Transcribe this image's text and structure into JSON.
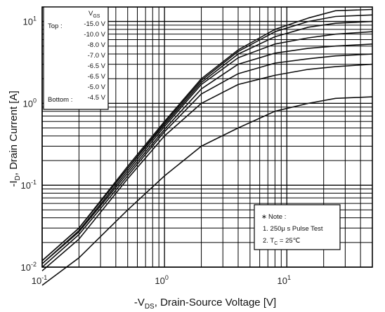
{
  "chart_data": {
    "type": "line",
    "x_scale": "log",
    "y_scale": "log",
    "xlim": [
      0.1,
      50
    ],
    "ylim": [
      0.01,
      15
    ],
    "grid": true,
    "xlabel": {
      "prefix": "-V",
      "sub": "DS",
      "suffix": ", Drain-Source Voltage [V]"
    },
    "ylabel": {
      "prefix": "-I",
      "sub": "D",
      "suffix": ", Drain Current [A]"
    },
    "x_ticks": [
      {
        "value": 0.1,
        "base": "10",
        "exp": "-1"
      },
      {
        "value": 1,
        "base": "10",
        "exp": "0"
      },
      {
        "value": 10,
        "base": "10",
        "exp": "1"
      }
    ],
    "y_ticks": [
      {
        "value": 0.01,
        "base": "10",
        "exp": "-2"
      },
      {
        "value": 0.1,
        "base": "10",
        "exp": "-1"
      },
      {
        "value": 1,
        "base": "10",
        "exp": "0"
      },
      {
        "value": 10,
        "base": "10",
        "exp": "1"
      }
    ],
    "legend": {
      "header_prefix": "V",
      "header_sub": "GS",
      "top_label": "Top :",
      "bottom_label": "Bottom :",
      "entries": [
        "-15.0 V",
        "-10.0 V",
        "-8.0 V",
        "-7.0 V",
        "-6.5 V",
        "-6.5 V",
        "-5.0 V",
        "-4.5 V"
      ]
    },
    "note": {
      "title": "Note :",
      "line1": "1. 250μ s Pulse Test",
      "line2_prefix": "2. T",
      "line2_sub": "C",
      "line2_suffix": " = 25℃"
    },
    "series": [
      {
        "name": "-15.0 V",
        "x": [
          0.1,
          0.2,
          0.5,
          1,
          2,
          4,
          8,
          15,
          25,
          50
        ],
        "y": [
          0.012,
          0.03,
          0.17,
          0.6,
          2.0,
          4.5,
          8.0,
          11.0,
          13.5,
          14.0
        ]
      },
      {
        "name": "-10.0 V",
        "x": [
          0.1,
          0.2,
          0.5,
          1,
          2,
          4,
          8,
          15,
          25,
          50
        ],
        "y": [
          0.012,
          0.03,
          0.16,
          0.58,
          1.9,
          4.3,
          7.5,
          10.0,
          11.5,
          12.0
        ]
      },
      {
        "name": "-8.0 V",
        "x": [
          0.1,
          0.2,
          0.5,
          1,
          2,
          4,
          8,
          15,
          25,
          50
        ],
        "y": [
          0.012,
          0.03,
          0.16,
          0.55,
          1.8,
          4.0,
          6.5,
          8.5,
          9.5,
          10.0
        ]
      },
      {
        "name": "-7.0 V",
        "x": [
          0.1,
          0.2,
          0.5,
          1,
          2,
          4,
          8,
          15,
          25,
          50
        ],
        "y": [
          0.011,
          0.028,
          0.15,
          0.52,
          1.7,
          3.6,
          5.3,
          6.3,
          7.0,
          7.5
        ]
      },
      {
        "name": "-6.5 V",
        "x": [
          0.1,
          0.2,
          0.5,
          1,
          2,
          4,
          8,
          15,
          25,
          50
        ],
        "y": [
          0.011,
          0.027,
          0.14,
          0.48,
          1.5,
          3.0,
          4.1,
          4.7,
          5.0,
          5.3
        ]
      },
      {
        "name": "-6.5 V",
        "x": [
          0.1,
          0.2,
          0.5,
          1,
          2,
          4,
          8,
          15,
          25,
          50
        ],
        "y": [
          0.01,
          0.025,
          0.13,
          0.45,
          1.3,
          2.3,
          3.1,
          3.5,
          3.8,
          4.0
        ]
      },
      {
        "name": "-5.0 V",
        "x": [
          0.1,
          0.2,
          0.5,
          1,
          2,
          4,
          8,
          15,
          25,
          50
        ],
        "y": [
          0.009,
          0.022,
          0.12,
          0.4,
          1.0,
          1.7,
          2.2,
          2.6,
          2.8,
          3.0
        ]
      },
      {
        "name": "-4.5 V",
        "x": [
          0.1,
          0.2,
          0.5,
          1,
          2,
          4,
          8,
          15,
          25,
          50
        ],
        "y": [
          0.006,
          0.013,
          0.05,
          0.13,
          0.3,
          0.5,
          0.8,
          1.0,
          1.15,
          1.2
        ]
      }
    ]
  }
}
